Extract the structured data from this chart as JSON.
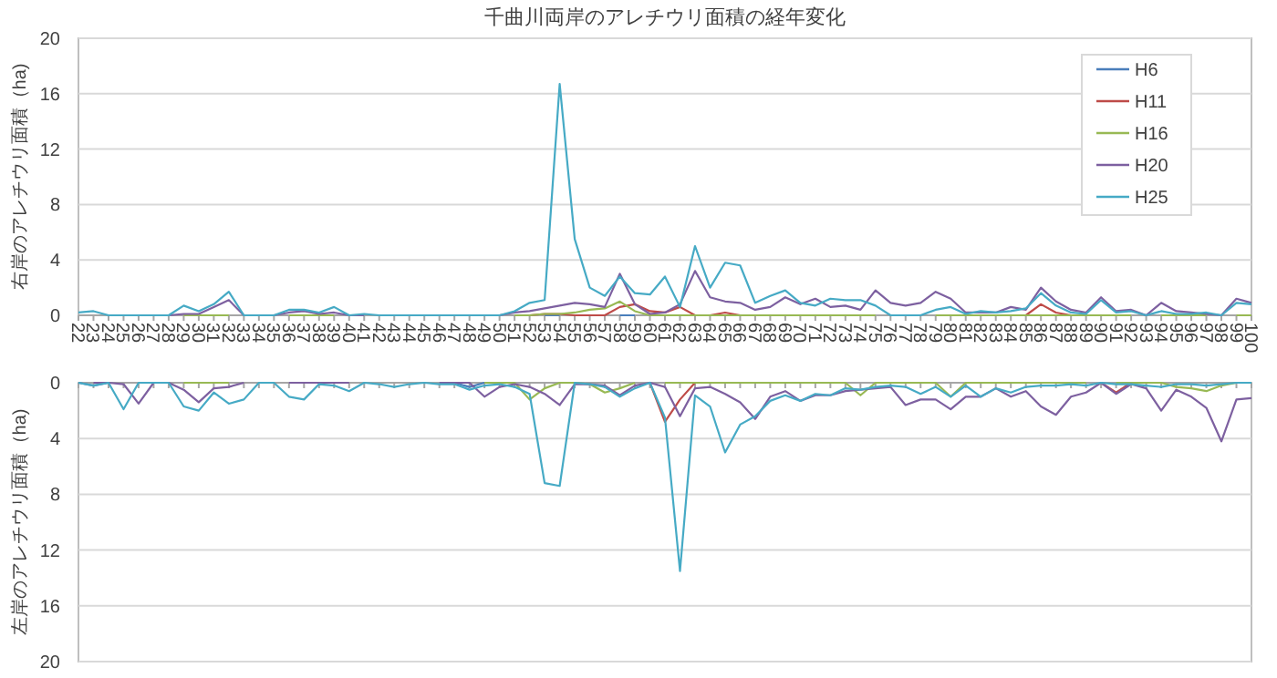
{
  "chart_data": [
    {
      "type": "line",
      "title": "千曲川両岸のアレチウリ面積の経年変化",
      "ylabel": "右岸のアレチウリ面積（ha)",
      "categories": [
        "22",
        "23",
        "24",
        "25",
        "26",
        "27",
        "28",
        "29",
        "30",
        "31",
        "32",
        "33",
        "34",
        "35",
        "36",
        "37",
        "38",
        "39",
        "40",
        "41",
        "42",
        "43",
        "44",
        "45",
        "46",
        "47",
        "48",
        "49",
        "50",
        "51",
        "52",
        "53",
        "54",
        "55",
        "56",
        "57",
        "58",
        "59",
        "60",
        "61",
        "62",
        "63",
        "64",
        "65",
        "66",
        "67",
        "68",
        "69",
        "70",
        "71",
        "72",
        "73",
        "74",
        "75",
        "76",
        "77",
        "78",
        "79",
        "80",
        "81",
        "82",
        "83",
        "84",
        "85",
        "86",
        "87",
        "88",
        "89",
        "90",
        "91",
        "92",
        "93",
        "94",
        "95",
        "96",
        "97",
        "98",
        "99",
        "100"
      ],
      "ylim": [
        0,
        20
      ],
      "yticks": [
        0,
        4,
        8,
        12,
        16,
        20
      ],
      "grid": "y",
      "legend": "top right",
      "series": [
        {
          "name": "H6",
          "color": "#4a7ebb",
          "values": [
            null,
            null,
            null,
            null,
            null,
            null,
            null,
            null,
            null,
            null,
            null,
            null,
            null,
            null,
            null,
            null,
            null,
            null,
            null,
            null,
            null,
            null,
            null,
            null,
            null,
            null,
            null,
            null,
            null,
            null,
            null,
            0,
            0,
            null,
            null,
            null,
            0,
            0,
            null,
            null,
            null,
            null,
            null,
            null,
            null,
            null,
            null,
            null,
            null,
            null,
            null,
            null,
            null,
            null,
            null,
            null,
            null,
            null,
            null,
            null,
            null,
            null,
            null,
            null,
            null,
            null,
            null,
            null,
            null,
            null,
            null,
            null,
            null,
            null,
            null,
            null,
            null,
            null,
            null
          ]
        },
        {
          "name": "H11",
          "color": "#be4b48",
          "values": [
            null,
            null,
            null,
            null,
            null,
            null,
            null,
            null,
            null,
            null,
            null,
            null,
            null,
            null,
            null,
            null,
            null,
            null,
            null,
            null,
            null,
            null,
            null,
            null,
            null,
            null,
            null,
            null,
            null,
            null,
            0,
            0.1,
            0.1,
            0,
            0,
            0,
            0.6,
            0.8,
            0.3,
            0.2,
            0.6,
            0,
            0,
            0.2,
            0,
            null,
            null,
            null,
            null,
            null,
            null,
            null,
            null,
            null,
            null,
            null,
            null,
            null,
            null,
            null,
            null,
            null,
            null,
            0,
            0.8,
            0.2,
            0,
            null,
            null,
            null,
            null,
            null,
            null,
            null,
            null,
            null,
            null,
            null,
            null
          ]
        },
        {
          "name": "H16",
          "color": "#98b954",
          "values": [
            null,
            null,
            null,
            null,
            null,
            null,
            null,
            0,
            0,
            0,
            0,
            null,
            null,
            null,
            0,
            0,
            0,
            0,
            null,
            null,
            null,
            null,
            null,
            null,
            null,
            null,
            null,
            null,
            null,
            0,
            0,
            0.1,
            0.1,
            0.2,
            0.4,
            0.5,
            1.0,
            0.3,
            0,
            0,
            0,
            0,
            0,
            0,
            0,
            0,
            0,
            0,
            0,
            0,
            0,
            0,
            0,
            0,
            null,
            null,
            null,
            0,
            0,
            0,
            0,
            0,
            0,
            0,
            0,
            0,
            0,
            0,
            0,
            0,
            0,
            null,
            0,
            0,
            0,
            0,
            null,
            0,
            0
          ]
        },
        {
          "name": "H20",
          "color": "#7d60a0",
          "values": [
            null,
            null,
            null,
            null,
            null,
            null,
            0,
            0.1,
            0.1,
            0.6,
            1.1,
            0,
            null,
            0,
            0.2,
            0.3,
            0.1,
            0.2,
            0,
            0,
            null,
            null,
            null,
            null,
            null,
            null,
            null,
            null,
            0,
            0.2,
            0.3,
            0.5,
            0.7,
            0.9,
            0.8,
            0.6,
            3.0,
            0.8,
            0.1,
            0.2,
            0.8,
            3.2,
            1.3,
            1.0,
            0.9,
            0.4,
            0.6,
            1.3,
            0.8,
            1.2,
            0.6,
            0.7,
            0.4,
            1.8,
            0.9,
            0.7,
            0.9,
            1.7,
            1.2,
            0.2,
            0.2,
            0.2,
            0.6,
            0.4,
            2.0,
            1.0,
            0.4,
            0.2,
            1.3,
            0.3,
            0.4,
            0,
            0.9,
            0.3,
            0.2,
            0.1,
            0,
            1.2,
            0.9
          ]
        },
        {
          "name": "H25",
          "color": "#46aac5",
          "values": [
            0.2,
            0.3,
            0,
            0,
            0,
            0,
            0,
            0.7,
            0.3,
            0.8,
            1.7,
            0,
            0,
            0,
            0.4,
            0.4,
            0.2,
            0.6,
            0,
            0.1,
            0,
            0,
            0,
            0,
            0,
            0,
            0,
            0,
            0,
            0.3,
            0.9,
            1.1,
            16.7,
            5.5,
            2.0,
            1.4,
            2.8,
            1.6,
            1.5,
            2.8,
            0.6,
            5.0,
            2.0,
            3.8,
            3.6,
            0.9,
            1.4,
            1.8,
            0.9,
            0.7,
            1.2,
            1.1,
            1.1,
            0.7,
            0,
            0,
            0,
            0.4,
            0.6,
            0.1,
            0.3,
            0.2,
            0.3,
            0.5,
            1.6,
            0.7,
            0.2,
            0.1,
            1.1,
            0.2,
            0.3,
            0,
            0.3,
            0.1,
            0.1,
            0.2,
            0,
            0.9,
            0.8
          ]
        }
      ]
    },
    {
      "type": "line",
      "ylabel": "左岸のアレチウリ面積（ha)",
      "categories": [
        "22",
        "23",
        "24",
        "25",
        "26",
        "27",
        "28",
        "29",
        "30",
        "31",
        "32",
        "33",
        "34",
        "35",
        "36",
        "37",
        "38",
        "39",
        "40",
        "41",
        "42",
        "43",
        "44",
        "45",
        "46",
        "47",
        "48",
        "49",
        "50",
        "51",
        "52",
        "53",
        "54",
        "55",
        "56",
        "57",
        "58",
        "59",
        "60",
        "61",
        "62",
        "63",
        "64",
        "65",
        "66",
        "67",
        "68",
        "69",
        "70",
        "71",
        "72",
        "73",
        "74",
        "75",
        "76",
        "77",
        "78",
        "79",
        "80",
        "81",
        "82",
        "83",
        "84",
        "85",
        "86",
        "87",
        "88",
        "89",
        "90",
        "91",
        "92",
        "93",
        "94",
        "95",
        "96",
        "97",
        "98",
        "99",
        "100"
      ],
      "ylim": [
        20,
        0
      ],
      "yticks": [
        0,
        4,
        8,
        12,
        16,
        20
      ],
      "grid": "y",
      "tick_labels": "y",
      "series": [
        {
          "color": "#4a7ebb",
          "values": [
            0,
            0.2,
            0,
            null,
            null,
            null,
            null,
            null,
            null,
            null,
            null,
            null,
            null,
            null,
            null,
            null,
            null,
            null,
            null,
            null,
            null,
            null,
            null,
            null,
            null,
            0,
            0.3,
            0,
            null,
            null,
            null,
            null,
            null,
            null,
            null,
            null,
            null,
            null,
            null,
            null,
            null,
            null,
            null,
            null,
            null,
            null,
            null,
            null,
            null,
            null,
            null,
            null,
            null,
            null,
            null,
            null,
            null,
            null,
            null,
            null,
            null,
            null,
            null,
            null,
            null,
            null,
            null,
            null,
            null,
            null,
            null,
            null,
            null,
            null,
            null,
            null,
            null,
            null,
            null
          ]
        },
        {
          "color": "#be4b48",
          "values": [
            null,
            null,
            null,
            null,
            null,
            null,
            null,
            null,
            null,
            null,
            null,
            null,
            null,
            null,
            null,
            null,
            null,
            null,
            null,
            null,
            null,
            null,
            null,
            null,
            null,
            null,
            null,
            null,
            null,
            null,
            null,
            null,
            null,
            null,
            null,
            null,
            null,
            null,
            0,
            2.8,
            1.2,
            0,
            null,
            null,
            null,
            null,
            null,
            null,
            null,
            null,
            null,
            null,
            null,
            null,
            null,
            null,
            null,
            null,
            null,
            null,
            null,
            null,
            null,
            null,
            null,
            null,
            null,
            null,
            0,
            0.7,
            0,
            null,
            null,
            null,
            null,
            null,
            null,
            null,
            null
          ]
        },
        {
          "color": "#98b954",
          "values": [
            null,
            null,
            null,
            null,
            null,
            null,
            null,
            0,
            0,
            0,
            0,
            null,
            null,
            null,
            null,
            null,
            null,
            null,
            null,
            null,
            null,
            null,
            null,
            null,
            null,
            null,
            null,
            0,
            0,
            0,
            1.2,
            0.4,
            0,
            0,
            0.1,
            0.7,
            0.4,
            0,
            null,
            0,
            0,
            0,
            0,
            0,
            0,
            0,
            0,
            0,
            0,
            0,
            0,
            0,
            0.9,
            0,
            0,
            0,
            0,
            0,
            1.0,
            0,
            0,
            0,
            0,
            0,
            0,
            0,
            0,
            0,
            null,
            0,
            0,
            0,
            0,
            0.3,
            0.4,
            0.6,
            0.2,
            0,
            null
          ]
        },
        {
          "color": "#7d60a0",
          "values": [
            null,
            0,
            0,
            0.1,
            1.5,
            0,
            0,
            0.5,
            1.4,
            0.4,
            0.3,
            0,
            null,
            null,
            0,
            0,
            0,
            0,
            0,
            null,
            null,
            null,
            null,
            null,
            0,
            0,
            0,
            1.0,
            0.3,
            0.1,
            0.3,
            0.8,
            1.6,
            0.1,
            0.1,
            0.2,
            0.9,
            0.2,
            0,
            0.3,
            2.4,
            0.4,
            0.3,
            0.8,
            1.4,
            2.6,
            1.0,
            0.6,
            1.3,
            0.9,
            0.9,
            0.6,
            0.5,
            0.4,
            0.3,
            1.6,
            1.2,
            1.2,
            1.9,
            1.0,
            1.0,
            0.4,
            1.0,
            0.6,
            1.7,
            2.3,
            1.0,
            0.7,
            0,
            0.8,
            0.1,
            0.4,
            2.0,
            0.5,
            1.0,
            1.8,
            4.2,
            1.2,
            1.1
          ]
        },
        {
          "color": "#46aac5",
          "values": [
            0,
            0.2,
            0,
            1.9,
            0,
            0,
            0,
            1.7,
            2.0,
            0.7,
            1.5,
            1.2,
            0,
            0,
            1.0,
            1.2,
            0.1,
            0.2,
            0.6,
            0,
            0.1,
            0.3,
            0.1,
            0,
            0.1,
            0.1,
            0.5,
            0.2,
            0.1,
            0.3,
            0.8,
            7.2,
            7.4,
            0,
            0.1,
            0.3,
            1.0,
            0.4,
            0,
            2.5,
            13.5,
            0.9,
            1.7,
            5.0,
            3.0,
            2.4,
            1.3,
            0.9,
            1.3,
            0.8,
            0.9,
            0.4,
            0.5,
            0.3,
            0.2,
            0.3,
            0.8,
            0.3,
            1.0,
            0.2,
            1.0,
            0.4,
            0.7,
            0.3,
            0.2,
            0.2,
            0.1,
            0.2,
            0,
            0.1,
            0.1,
            0.2,
            0.3,
            0.1,
            0.1,
            0.2,
            0.1,
            0,
            0
          ]
        }
      ]
    }
  ]
}
